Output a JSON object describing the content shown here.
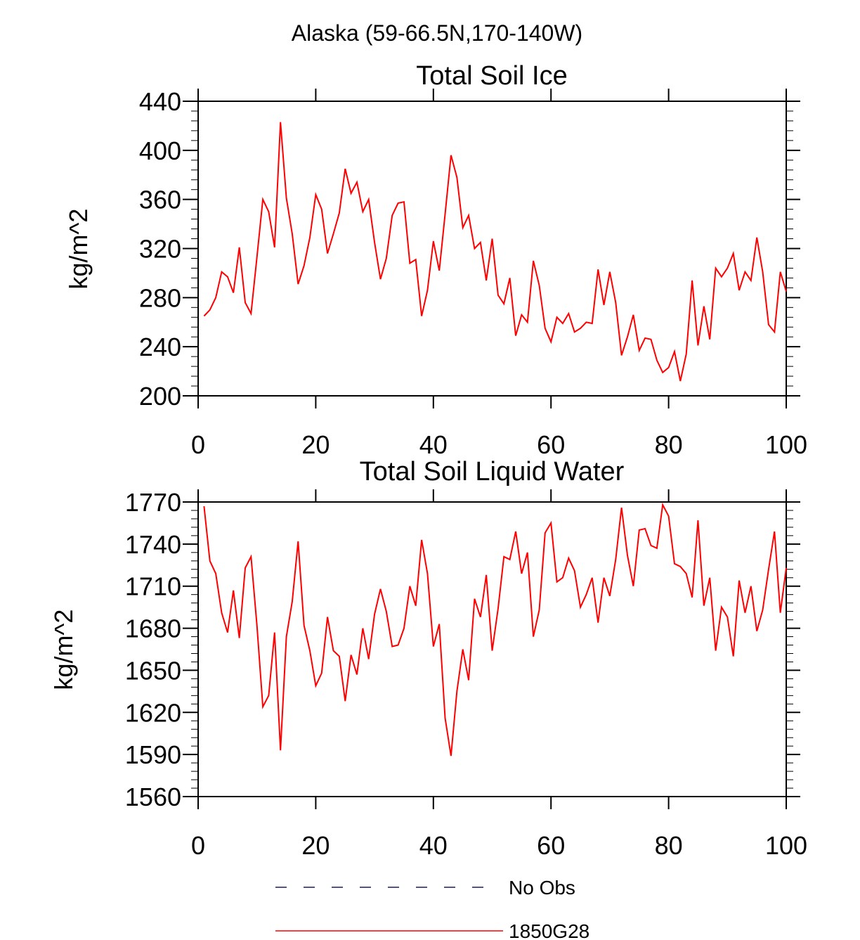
{
  "figure_title": "Alaska (59-66.5N,170-140W)",
  "legend": [
    {
      "label": "No Obs",
      "color": "#1a1a5e",
      "style": "dashed"
    },
    {
      "label": "1850G28",
      "color": "#ff0000",
      "style": "solid"
    }
  ],
  "chart_data": [
    {
      "type": "line",
      "title": "Total Soil Ice",
      "xlabel": "",
      "ylabel": "kg/m^2",
      "xlim": [
        0,
        100
      ],
      "ylim": [
        200,
        440
      ],
      "xticks": [
        0,
        20,
        40,
        60,
        80,
        100
      ],
      "xtick_labels": [
        "0",
        "20",
        "40",
        "60",
        "80",
        "100"
      ],
      "yticks": [
        200,
        240,
        280,
        320,
        360,
        400,
        440
      ],
      "ytick_labels": [
        "200",
        "240",
        "280",
        "320",
        "360",
        "400",
        "440"
      ],
      "series": [
        {
          "name": "1850G28",
          "color": "#ff0000",
          "x": [
            1,
            2,
            3,
            4,
            5,
            6,
            7,
            8,
            9,
            10,
            11,
            12,
            13,
            14,
            15,
            16,
            17,
            18,
            19,
            20,
            21,
            22,
            23,
            24,
            25,
            26,
            27,
            28,
            29,
            30,
            31,
            32,
            33,
            34,
            35,
            36,
            37,
            38,
            39,
            40,
            41,
            42,
            43,
            44,
            45,
            46,
            47,
            48,
            49,
            50,
            51,
            52,
            53,
            54,
            55,
            56,
            57,
            58,
            59,
            60,
            61,
            62,
            63,
            64,
            65,
            66,
            67,
            68,
            69,
            70,
            71,
            72,
            73,
            74,
            75,
            76,
            77,
            78,
            79,
            80,
            81,
            82,
            83,
            84,
            85,
            86,
            87,
            88,
            89,
            90,
            91,
            92,
            93,
            94,
            95,
            96,
            97,
            98,
            99,
            100
          ],
          "values": [
            265,
            270,
            280,
            301,
            297,
            284,
            321,
            276,
            267,
            313,
            360,
            350,
            321,
            423,
            361,
            332,
            291,
            306,
            329,
            364,
            352,
            316,
            332,
            349,
            385,
            365,
            374,
            350,
            360,
            325,
            295,
            312,
            347,
            357,
            358,
            308,
            311,
            265,
            286,
            326,
            302,
            348,
            396,
            378,
            337,
            347,
            320,
            325,
            294,
            328,
            282,
            275,
            296,
            249,
            266,
            260,
            310,
            290,
            255,
            244,
            264,
            259,
            267,
            252,
            255,
            260,
            259,
            303,
            274,
            301,
            276,
            233,
            248,
            266,
            237,
            247,
            246,
            229,
            219,
            223,
            236,
            212,
            234,
            294,
            241,
            273,
            246,
            304,
            297,
            304,
            316,
            286,
            301,
            294,
            329,
            301,
            258,
            252,
            301,
            285
          ]
        }
      ]
    },
    {
      "type": "line",
      "title": "Total Soil Liquid Water",
      "xlabel": "",
      "ylabel": "kg/m^2",
      "xlim": [
        0,
        100
      ],
      "ylim": [
        1560,
        1770
      ],
      "xticks": [
        0,
        20,
        40,
        60,
        80,
        100
      ],
      "xtick_labels": [
        "0",
        "20",
        "40",
        "60",
        "80",
        "100"
      ],
      "yticks": [
        1560,
        1590,
        1620,
        1650,
        1680,
        1710,
        1740,
        1770
      ],
      "ytick_labels": [
        "1560",
        "1590",
        "1620",
        "1650",
        "1680",
        "1710",
        "1740",
        "1770"
      ],
      "series": [
        {
          "name": "1850G28",
          "color": "#ff0000",
          "x": [
            1,
            2,
            3,
            4,
            5,
            6,
            7,
            8,
            9,
            10,
            11,
            12,
            13,
            14,
            15,
            16,
            17,
            18,
            19,
            20,
            21,
            22,
            23,
            24,
            25,
            26,
            27,
            28,
            29,
            30,
            31,
            32,
            33,
            34,
            35,
            36,
            37,
            38,
            39,
            40,
            41,
            42,
            43,
            44,
            45,
            46,
            47,
            48,
            49,
            50,
            51,
            52,
            53,
            54,
            55,
            56,
            57,
            58,
            59,
            60,
            61,
            62,
            63,
            64,
            65,
            66,
            67,
            68,
            69,
            70,
            71,
            72,
            73,
            74,
            75,
            76,
            77,
            78,
            79,
            80,
            81,
            82,
            83,
            84,
            85,
            86,
            87,
            88,
            89,
            90,
            91,
            92,
            93,
            94,
            95,
            96,
            97,
            98,
            99,
            100
          ],
          "values": [
            1767,
            1728,
            1719,
            1691,
            1677,
            1707,
            1673,
            1723,
            1731,
            1682,
            1624,
            1632,
            1677,
            1593,
            1674,
            1699,
            1742,
            1682,
            1664,
            1639,
            1648,
            1688,
            1664,
            1660,
            1628,
            1661,
            1647,
            1680,
            1658,
            1690,
            1708,
            1692,
            1667,
            1668,
            1680,
            1710,
            1696,
            1743,
            1719,
            1667,
            1683,
            1616,
            1589,
            1635,
            1665,
            1643,
            1701,
            1688,
            1718,
            1664,
            1694,
            1731,
            1729,
            1749,
            1719,
            1734,
            1674,
            1693,
            1748,
            1755,
            1713,
            1716,
            1730,
            1721,
            1695,
            1704,
            1716,
            1684,
            1716,
            1703,
            1729,
            1766,
            1732,
            1710,
            1750,
            1751,
            1739,
            1737,
            1768,
            1760,
            1726,
            1724,
            1719,
            1702,
            1757,
            1696,
            1716,
            1664,
            1695,
            1688,
            1660,
            1714,
            1691,
            1710,
            1678,
            1693,
            1722,
            1749,
            1691,
            1723
          ]
        }
      ]
    }
  ]
}
